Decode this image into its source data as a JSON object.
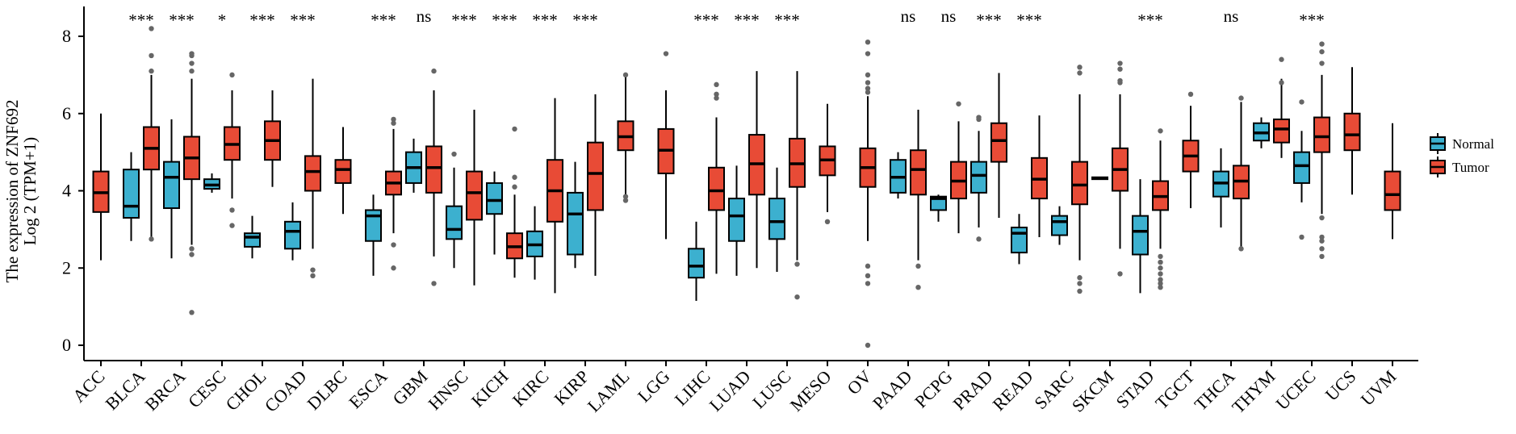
{
  "chart_data": {
    "type": "boxplot",
    "ylabel_line1": "The expression of ZNF692",
    "ylabel_line2": "Log 2 (TPM+1)",
    "ylim": [
      -0.3,
      8.7
    ],
    "yticks": [
      "0",
      "2",
      "4",
      "6",
      "8"
    ],
    "legend_placement": "right",
    "colors": {
      "Normal": "#3cb0cf",
      "Tumor": "#e84b36"
    },
    "series": [
      {
        "name": "Normal"
      },
      {
        "name": "Tumor"
      }
    ],
    "categories": [
      {
        "name": "ACC",
        "sig": "",
        "normal": null,
        "tumor": {
          "w": [
            2.2,
            6.0
          ],
          "q": [
            3.45,
            3.95,
            4.5
          ],
          "o": []
        }
      },
      {
        "name": "BLCA",
        "sig": "***",
        "normal": {
          "w": [
            2.7,
            5.0
          ],
          "q": [
            3.3,
            3.6,
            4.55
          ],
          "o": []
        },
        "tumor": {
          "w": [
            2.7,
            7.0
          ],
          "q": [
            4.55,
            5.1,
            5.65
          ],
          "o": [
            7.5,
            8.2,
            7.1,
            2.75
          ]
        }
      },
      {
        "name": "BRCA",
        "sig": "***",
        "normal": {
          "w": [
            2.25,
            5.85
          ],
          "q": [
            3.55,
            4.35,
            4.75
          ],
          "o": []
        },
        "tumor": {
          "w": [
            2.6,
            6.9
          ],
          "q": [
            4.3,
            4.85,
            5.4
          ],
          "o": [
            7.5,
            7.55,
            7.3,
            7.1,
            2.5,
            2.35,
            0.85
          ]
        }
      },
      {
        "name": "CESC",
        "sig": "*",
        "normal": {
          "w": [
            3.95,
            4.45
          ],
          "q": [
            4.05,
            4.15,
            4.3
          ],
          "o": []
        },
        "tumor": {
          "w": [
            3.8,
            6.6
          ],
          "q": [
            4.8,
            5.2,
            5.65
          ],
          "o": [
            7.0,
            3.5,
            3.1
          ]
        }
      },
      {
        "name": "CHOL",
        "sig": "***",
        "normal": {
          "w": [
            2.25,
            3.35
          ],
          "q": [
            2.55,
            2.8,
            2.9
          ],
          "o": []
        },
        "tumor": {
          "w": [
            4.1,
            6.6
          ],
          "q": [
            4.8,
            5.3,
            5.8
          ],
          "o": []
        }
      },
      {
        "name": "COAD",
        "sig": "***",
        "normal": {
          "w": [
            2.2,
            3.7
          ],
          "q": [
            2.5,
            2.95,
            3.2
          ],
          "o": []
        },
        "tumor": {
          "w": [
            2.5,
            6.9
          ],
          "q": [
            4.0,
            4.5,
            4.9
          ],
          "o": [
            1.95,
            1.8
          ]
        }
      },
      {
        "name": "DLBC",
        "sig": "",
        "normal": null,
        "tumor": {
          "w": [
            3.4,
            5.65
          ],
          "q": [
            4.2,
            4.55,
            4.8
          ],
          "o": []
        }
      },
      {
        "name": "ESCA",
        "sig": "***",
        "normal": {
          "w": [
            1.8,
            3.9
          ],
          "q": [
            2.7,
            3.35,
            3.5
          ],
          "o": []
        },
        "tumor": {
          "w": [
            2.9,
            5.6
          ],
          "q": [
            3.9,
            4.2,
            4.5
          ],
          "o": [
            5.85,
            5.75,
            2.6,
            2.0
          ]
        }
      },
      {
        "name": "GBM",
        "sig": "ns",
        "normal": {
          "w": [
            3.95,
            5.35
          ],
          "q": [
            4.2,
            4.6,
            5.0
          ],
          "o": []
        },
        "tumor": {
          "w": [
            2.3,
            6.6
          ],
          "q": [
            3.95,
            4.6,
            5.15
          ],
          "o": [
            7.1,
            1.6
          ]
        }
      },
      {
        "name": "HNSC",
        "sig": "***",
        "normal": {
          "w": [
            2.0,
            4.6
          ],
          "q": [
            2.75,
            3.0,
            3.6
          ],
          "o": [
            4.95
          ]
        },
        "tumor": {
          "w": [
            1.55,
            6.1
          ],
          "q": [
            3.25,
            3.95,
            4.5
          ],
          "o": []
        }
      },
      {
        "name": "KICH",
        "sig": "***",
        "normal": {
          "w": [
            2.35,
            4.5
          ],
          "q": [
            3.4,
            3.75,
            4.2
          ],
          "o": []
        },
        "tumor": {
          "w": [
            1.75,
            3.9
          ],
          "q": [
            2.25,
            2.55,
            2.9
          ],
          "o": [
            5.6,
            4.35,
            4.1
          ]
        }
      },
      {
        "name": "KIRC",
        "sig": "***",
        "normal": {
          "w": [
            1.7,
            3.6
          ],
          "q": [
            2.3,
            2.6,
            2.95
          ],
          "o": []
        },
        "tumor": {
          "w": [
            1.35,
            6.4
          ],
          "q": [
            3.2,
            4.0,
            4.8
          ],
          "o": []
        }
      },
      {
        "name": "KIRP",
        "sig": "***",
        "normal": {
          "w": [
            2.0,
            4.75
          ],
          "q": [
            2.35,
            3.4,
            3.95
          ],
          "o": []
        },
        "tumor": {
          "w": [
            1.8,
            6.5
          ],
          "q": [
            3.5,
            4.45,
            5.25
          ],
          "o": []
        }
      },
      {
        "name": "LAML",
        "sig": "",
        "normal": null,
        "tumor": {
          "w": [
            3.8,
            7.0
          ],
          "q": [
            5.05,
            5.4,
            5.8
          ],
          "o": [
            7.0,
            3.75,
            3.85
          ]
        }
      },
      {
        "name": "LGG",
        "sig": "",
        "normal": null,
        "tumor": {
          "w": [
            2.75,
            6.6
          ],
          "q": [
            4.45,
            5.05,
            5.6
          ],
          "o": [
            7.55
          ]
        }
      },
      {
        "name": "LIHC",
        "sig": "***",
        "normal": {
          "w": [
            1.15,
            3.2
          ],
          "q": [
            1.75,
            2.05,
            2.5
          ],
          "o": []
        },
        "tumor": {
          "w": [
            1.85,
            5.9
          ],
          "q": [
            3.5,
            4.0,
            4.6
          ],
          "o": [
            6.75,
            6.5,
            6.4
          ]
        }
      },
      {
        "name": "LUAD",
        "sig": "***",
        "normal": {
          "w": [
            1.8,
            4.65
          ],
          "q": [
            2.7,
            3.35,
            3.8
          ],
          "o": []
        },
        "tumor": {
          "w": [
            2.0,
            7.1
          ],
          "q": [
            3.9,
            4.7,
            5.45
          ],
          "o": []
        }
      },
      {
        "name": "LUSC",
        "sig": "***",
        "normal": {
          "w": [
            1.9,
            4.6
          ],
          "q": [
            2.75,
            3.2,
            3.8
          ],
          "o": []
        },
        "tumor": {
          "w": [
            2.2,
            7.1
          ],
          "q": [
            4.1,
            4.7,
            5.35
          ],
          "o": [
            2.1,
            1.25
          ]
        }
      },
      {
        "name": "MESO",
        "sig": "",
        "normal": null,
        "tumor": {
          "w": [
            3.45,
            6.25
          ],
          "q": [
            4.4,
            4.8,
            5.15
          ],
          "o": [
            3.2
          ]
        }
      },
      {
        "name": "OV",
        "sig": "",
        "normal": null,
        "tumor": {
          "w": [
            2.7,
            6.45
          ],
          "q": [
            4.1,
            4.6,
            5.1
          ],
          "o": [
            7.85,
            7.55,
            7.0,
            6.8,
            6.65,
            6.55,
            2.05,
            1.8,
            1.6,
            0.0
          ]
        }
      },
      {
        "name": "PAAD",
        "sig": "ns",
        "normal": {
          "w": [
            3.8,
            5.0
          ],
          "q": [
            3.95,
            4.35,
            4.8
          ],
          "o": []
        },
        "tumor": {
          "w": [
            2.2,
            6.1
          ],
          "q": [
            3.9,
            4.55,
            5.05
          ],
          "o": [
            2.05,
            1.5
          ]
        }
      },
      {
        "name": "PCPG",
        "sig": "ns",
        "normal": {
          "w": [
            3.2,
            3.9
          ],
          "q": [
            3.5,
            3.8,
            3.85
          ],
          "o": []
        },
        "tumor": {
          "w": [
            2.9,
            5.8
          ],
          "q": [
            3.8,
            4.25,
            4.75
          ],
          "o": [
            6.25
          ]
        }
      },
      {
        "name": "PRAD",
        "sig": "***",
        "normal": {
          "w": [
            3.05,
            5.55
          ],
          "q": [
            3.95,
            4.4,
            4.75
          ],
          "o": [
            5.85,
            5.9,
            2.75
          ]
        },
        "tumor": {
          "w": [
            3.3,
            7.05
          ],
          "q": [
            4.75,
            5.3,
            5.75
          ],
          "o": []
        }
      },
      {
        "name": "READ",
        "sig": "***",
        "normal": {
          "w": [
            2.1,
            3.4
          ],
          "q": [
            2.4,
            2.9,
            3.05
          ],
          "o": []
        },
        "tumor": {
          "w": [
            2.8,
            5.95
          ],
          "q": [
            3.8,
            4.3,
            4.85
          ],
          "o": []
        }
      },
      {
        "name": "SARC",
        "sig": "",
        "normal": {
          "w": [
            2.6,
            3.6
          ],
          "q": [
            2.85,
            3.2,
            3.35
          ],
          "o": []
        },
        "tumor": {
          "w": [
            2.2,
            6.5
          ],
          "q": [
            3.65,
            4.15,
            4.75
          ],
          "o": [
            7.2,
            7.05,
            1.75,
            1.6,
            1.4
          ]
        }
      },
      {
        "name": "SKCM",
        "sig": "",
        "normal": {
          "w": [
            4.3,
            4.35
          ],
          "q": [
            4.3,
            4.33,
            4.35
          ],
          "o": []
        },
        "tumor": {
          "w": [
            2.5,
            6.5
          ],
          "q": [
            4.0,
            4.55,
            5.1
          ],
          "o": [
            7.3,
            7.15,
            6.85,
            6.8,
            1.85
          ]
        }
      },
      {
        "name": "STAD",
        "sig": "***",
        "normal": {
          "w": [
            1.35,
            4.3
          ],
          "q": [
            2.35,
            2.95,
            3.35
          ],
          "o": []
        },
        "tumor": {
          "w": [
            2.5,
            5.3
          ],
          "q": [
            3.5,
            3.85,
            4.25
          ],
          "o": [
            5.55,
            2.3,
            2.15,
            2.0,
            1.85,
            1.7,
            1.6,
            1.5
          ]
        }
      },
      {
        "name": "TGCT",
        "sig": "",
        "normal": null,
        "tumor": {
          "w": [
            3.55,
            6.2
          ],
          "q": [
            4.5,
            4.9,
            5.3
          ],
          "o": [
            6.5
          ]
        }
      },
      {
        "name": "THCA",
        "sig": "ns",
        "normal": {
          "w": [
            3.05,
            5.1
          ],
          "q": [
            3.85,
            4.2,
            4.5
          ],
          "o": []
        },
        "tumor": {
          "w": [
            2.55,
            6.3
          ],
          "q": [
            3.8,
            4.25,
            4.65
          ],
          "o": [
            6.4,
            2.5
          ]
        }
      },
      {
        "name": "THYM",
        "sig": "",
        "normal": {
          "w": [
            5.1,
            5.9
          ],
          "q": [
            5.3,
            5.5,
            5.75
          ],
          "o": []
        },
        "tumor": {
          "w": [
            4.85,
            6.9
          ],
          "q": [
            5.25,
            5.6,
            5.85
          ],
          "o": [
            7.4,
            6.8
          ]
        }
      },
      {
        "name": "UCEC",
        "sig": "***",
        "normal": {
          "w": [
            3.7,
            5.55
          ],
          "q": [
            4.2,
            4.65,
            5.0
          ],
          "o": [
            6.3,
            2.8
          ]
        },
        "tumor": {
          "w": [
            3.4,
            7.0
          ],
          "q": [
            5.0,
            5.4,
            5.9
          ],
          "o": [
            7.8,
            7.6,
            7.3,
            3.3,
            2.8,
            2.7,
            2.5,
            2.3
          ]
        }
      },
      {
        "name": "UCS",
        "sig": "",
        "normal": null,
        "tumor": {
          "w": [
            3.9,
            7.2
          ],
          "q": [
            5.05,
            5.45,
            6.0
          ],
          "o": []
        }
      },
      {
        "name": "UVM",
        "sig": "",
        "normal": null,
        "tumor": {
          "w": [
            2.75,
            5.75
          ],
          "q": [
            3.5,
            3.9,
            4.5
          ],
          "o": []
        }
      }
    ]
  }
}
